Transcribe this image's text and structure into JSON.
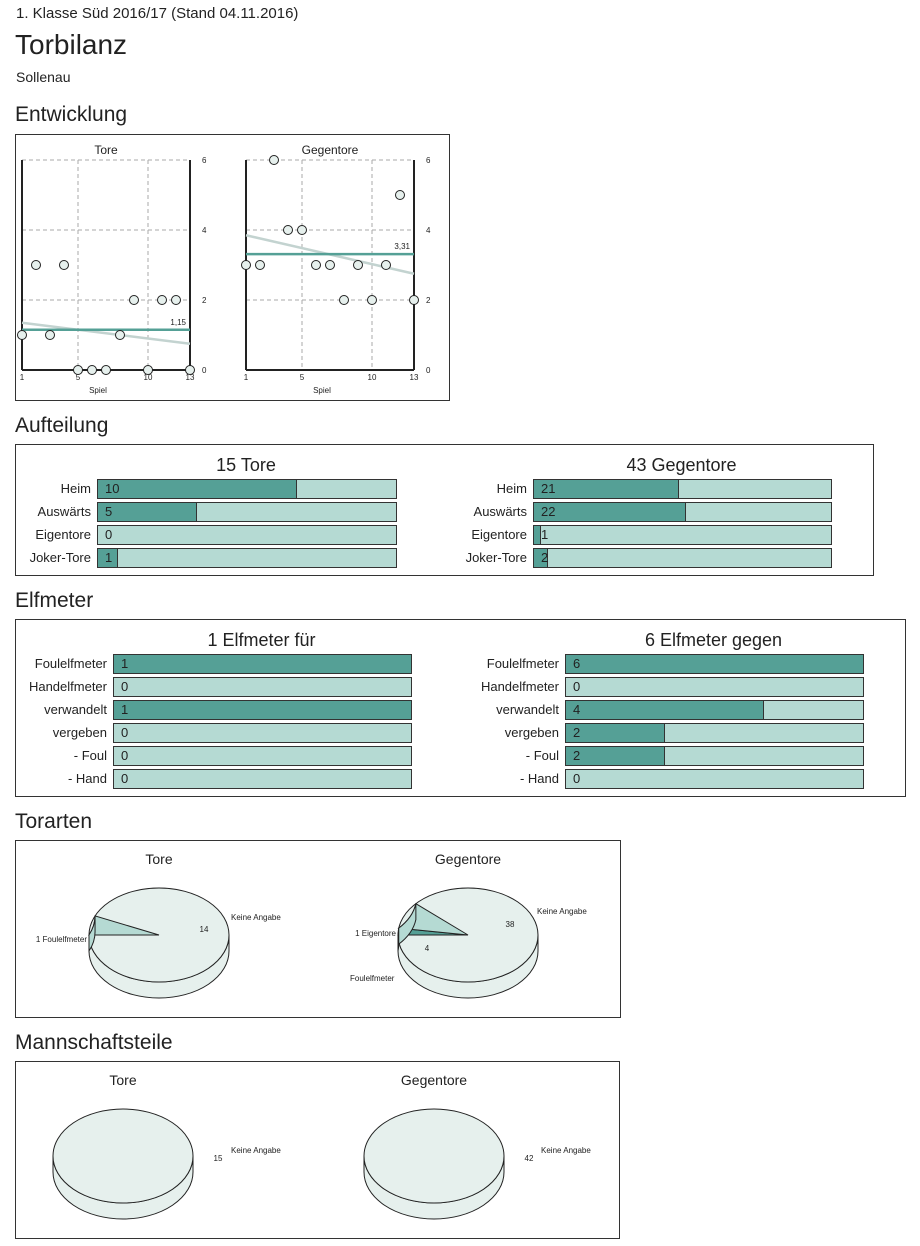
{
  "header": {
    "subtitle": "1. Klasse Süd 2016/17 (Stand 04.11.2016)",
    "title": "Torbilanz",
    "team": "Sollenau"
  },
  "colors": {
    "dark": "#55a096",
    "light": "#b5dad3",
    "pie_base": "#e6f0ed",
    "trend": "#c3d3d0"
  },
  "sections": {
    "entwicklung": "Entwicklung",
    "aufteilung": "Aufteilung",
    "elfmeter": "Elfmeter",
    "torarten": "Torarten",
    "mannschaftsteile": "Mannschaftsteile"
  },
  "chart_data": [
    {
      "id": "entwicklung-tore",
      "type": "scatter",
      "title": "Tore",
      "xlabel": "Spiel",
      "ylabel": "",
      "x": [
        1,
        2,
        3,
        4,
        5,
        6,
        7,
        8,
        9,
        10,
        11,
        12,
        13
      ],
      "values": [
        1,
        3,
        1,
        3,
        0,
        0,
        0,
        1,
        2,
        0,
        2,
        2,
        0
      ],
      "xticks": [
        "1",
        "5",
        "10",
        "13"
      ],
      "yticks": [
        "0",
        "2",
        "4",
        "6"
      ],
      "xlim": [
        1,
        13
      ],
      "ylim": [
        0,
        6
      ],
      "average": 1.15,
      "average_label": "1,15",
      "trend": [
        1.35,
        0.75
      ],
      "grid": true
    },
    {
      "id": "entwicklung-gegentore",
      "type": "scatter",
      "title": "Gegentore",
      "xlabel": "Spiel",
      "ylabel": "",
      "x": [
        1,
        2,
        3,
        4,
        5,
        6,
        7,
        8,
        9,
        10,
        11,
        12,
        13
      ],
      "values": [
        3,
        3,
        6,
        4,
        4,
        3,
        3,
        2,
        3,
        2,
        3,
        5,
        2
      ],
      "xticks": [
        "1",
        "5",
        "10",
        "13"
      ],
      "yticks": [
        "0",
        "2",
        "4",
        "6"
      ],
      "xlim": [
        1,
        13
      ],
      "ylim": [
        0,
        6
      ],
      "average": 3.31,
      "average_label": "3,31",
      "trend": [
        3.85,
        2.75
      ],
      "grid": true
    },
    {
      "id": "aufteilung-tore",
      "type": "bar",
      "title": "15 Tore",
      "total": 15,
      "categories": [
        "Heim",
        "Auswärts",
        "Eigentore",
        "Joker-Tore"
      ],
      "values": [
        10,
        5,
        0,
        1
      ]
    },
    {
      "id": "aufteilung-gegentore",
      "type": "bar",
      "title": "43 Gegentore",
      "total": 43,
      "categories": [
        "Heim",
        "Auswärts",
        "Eigentore",
        "Joker-Tore"
      ],
      "values": [
        21,
        22,
        1,
        2
      ]
    },
    {
      "id": "elfmeter-fuer",
      "type": "bar",
      "title": "1 Elfmeter für",
      "total": 1,
      "categories": [
        "Foulelfmeter",
        "Handelfmeter",
        "verwandelt",
        "vergeben",
        "- Foul",
        "- Hand"
      ],
      "values": [
        1,
        0,
        1,
        0,
        0,
        0
      ]
    },
    {
      "id": "elfmeter-gegen",
      "type": "bar",
      "title": "6 Elfmeter gegen",
      "total": 6,
      "categories": [
        "Foulelfmeter",
        "Handelfmeter",
        "verwandelt",
        "vergeben",
        "- Foul",
        "- Hand"
      ],
      "values": [
        6,
        0,
        4,
        2,
        2,
        0
      ]
    },
    {
      "id": "torarten-tore",
      "type": "pie",
      "title": "Tore",
      "slices": [
        {
          "name": "Keine Angabe",
          "value": 14,
          "label": "Keine Angabe",
          "value_label": "14",
          "color": "#e6f0ed"
        },
        {
          "name": "Foulelfmeter",
          "value": 1,
          "label": "1 Foulelfmeter",
          "value_label": "",
          "color": "#b5dad3"
        }
      ]
    },
    {
      "id": "torarten-gegentore",
      "type": "pie",
      "title": "Gegentore",
      "slices": [
        {
          "name": "Keine Angabe",
          "value": 38,
          "label": "Keine Angabe",
          "value_label": "38",
          "color": "#e6f0ed"
        },
        {
          "name": "Eigentore",
          "value": 1,
          "label": "1 Eigentore",
          "value_label": "",
          "color": "#55a096"
        },
        {
          "name": "Foulelfmeter",
          "value": 4,
          "label": "Foulelfmeter",
          "value_label": "4",
          "color": "#b5dad3"
        }
      ]
    },
    {
      "id": "mannschaftsteile-tore",
      "type": "pie",
      "title": "Tore",
      "slices": [
        {
          "name": "Keine Angabe",
          "value": 15,
          "label": "Keine Angabe",
          "value_label": "15",
          "color": "#e6f0ed"
        }
      ]
    },
    {
      "id": "mannschaftsteile-gegentore",
      "type": "pie",
      "title": "Gegentore",
      "slices": [
        {
          "name": "Keine Angabe",
          "value": 42,
          "label": "Keine Angabe",
          "value_label": "42",
          "color": "#e6f0ed"
        }
      ]
    }
  ]
}
